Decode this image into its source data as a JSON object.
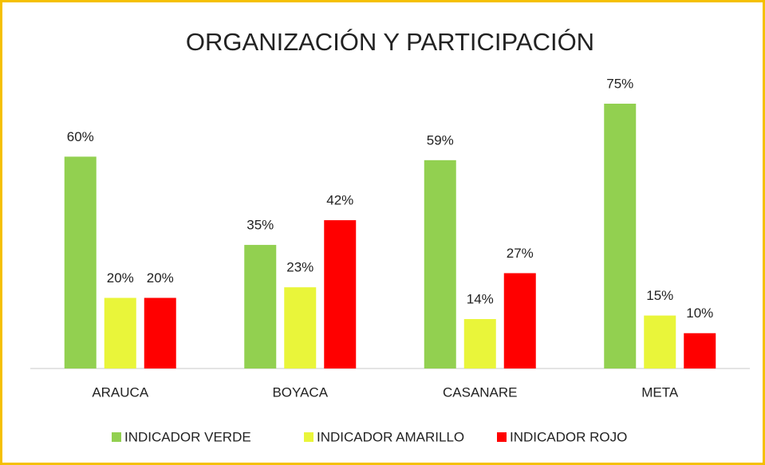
{
  "chart_data": {
    "type": "bar",
    "title": "ORGANIZACIÓN Y PARTICIPACIÓN",
    "categories": [
      "ARAUCA",
      "BOYACA",
      "CASANARE",
      "META"
    ],
    "series": [
      {
        "name": "INDICADOR VERDE",
        "color": "#92d050",
        "values": [
          60,
          35,
          59,
          75
        ],
        "value_labels": [
          "60%",
          "35%",
          "59%",
          "75%"
        ]
      },
      {
        "name": "INDICADOR AMARILLO",
        "color": "#e9f53a",
        "values": [
          20,
          23,
          14,
          15
        ],
        "value_labels": [
          "20%",
          "23%",
          "14%",
          "15%"
        ]
      },
      {
        "name": "INDICADOR ROJO",
        "color": "#ff0000",
        "values": [
          20,
          42,
          27,
          10
        ],
        "value_labels": [
          "20%",
          "42%",
          "27%",
          "10%"
        ]
      }
    ],
    "legend": "bottom"
  }
}
